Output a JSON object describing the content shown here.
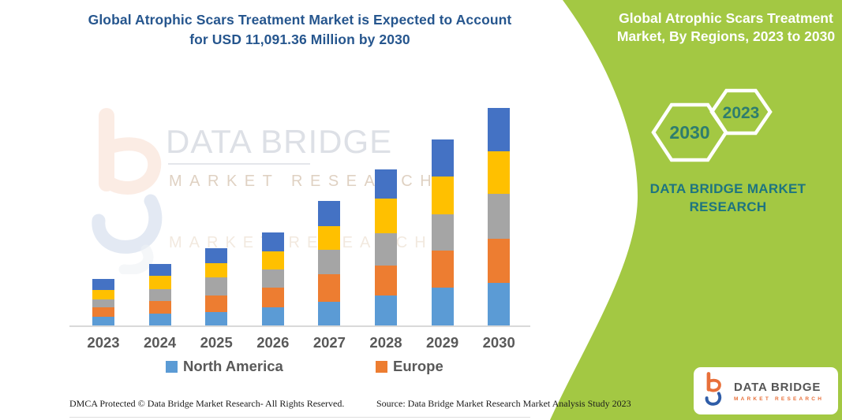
{
  "colors": {
    "panel_green": "#a3c843",
    "teal_text": "#1d7480",
    "title_blue": "#26568e",
    "axis_label_gray": "#595959",
    "hex_year_teal": "#2e7d6e"
  },
  "watermark": {
    "line1": "DATA BRIDGE",
    "line2": "MARKET RESEARCH"
  },
  "footer": {
    "left": "DMCA Protected © Data Bridge Market Research-  All Rights Reserved.",
    "right": "Source: Data Bridge Market Research  Market Analysis Study 2023"
  },
  "right_panel": {
    "title_lines": [
      "Global Atrophic Scars Treatment",
      "Market, By Regions, 2023 to 2030"
    ],
    "hexagons": {
      "back_year": "2030",
      "front_year": "2023"
    },
    "brand_text": "DATA BRIDGE MARKET RESEARCH",
    "logo_card": {
      "title": "DATA BRIDGE",
      "subtitle": "MARKET RESEARCH"
    }
  },
  "chart_data": {
    "type": "bar",
    "stacked": true,
    "title": "Global Atrophic Scars Treatment Market is Expected to Account for USD 11,091.36 Million by 2030",
    "title_lines": [
      "Global Atrophic Scars Treatment Market is Expected to Account",
      "for USD 11,091.36 Million by 2030"
    ],
    "unit": "USD Million (values estimated from bar heights; 2030 total anchored to 11,091.36)",
    "categories": [
      "2023",
      "2024",
      "2025",
      "2026",
      "2027",
      "2028",
      "2029",
      "2030"
    ],
    "series": [
      {
        "name": "North America",
        "color": "#5B9BD5",
        "values": [
          443,
          620,
          673,
          914,
          1208,
          1518,
          1921,
          2191
        ]
      },
      {
        "name": "Europe",
        "color": "#ED7D31",
        "values": [
          499,
          628,
          846,
          1007,
          1385,
          1543,
          1881,
          2239
        ]
      },
      {
        "name": "",
        "color": "#A5A5A5",
        "values": [
          403,
          604,
          938,
          938,
          1249,
          1639,
          1877,
          2284
        ]
      },
      {
        "name": "",
        "color": "#FFC000",
        "values": [
          483,
          673,
          741,
          942,
          1232,
          1784,
          1909,
          2187
        ]
      },
      {
        "name": "",
        "color": "#4472C4",
        "values": [
          564,
          632,
          737,
          938,
          1277,
          1478,
          1917,
          2190.36
        ]
      }
    ],
    "totals": [
      2392,
      3157,
      3935,
      4739,
      6351,
      7962,
      9505,
      11091.36
    ],
    "legend": [
      {
        "label": "North America",
        "color": "#5B9BD5"
      },
      {
        "label": "Europe",
        "color": "#ED7D31"
      }
    ],
    "axis": {
      "x_visible": true,
      "y_visible": false,
      "gridlines": false,
      "legend_position": "bottom"
    }
  }
}
